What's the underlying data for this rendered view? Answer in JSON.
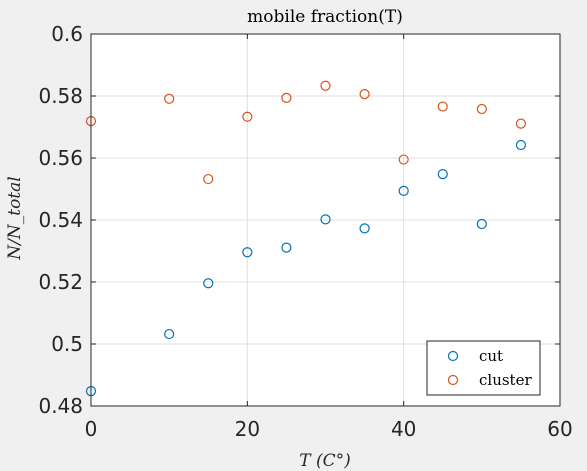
{
  "chart_data": {
    "type": "scatter",
    "title": "mobile fraction(T)",
    "xlabel": "T (C°)",
    "ylabel": "N/N_total",
    "xlim": [
      0,
      60
    ],
    "ylim": [
      0.48,
      0.6
    ],
    "xticks": [
      0,
      20,
      40,
      60
    ],
    "xtick_labels": [
      "0",
      "20",
      "40",
      "60"
    ],
    "yticks": [
      0.48,
      0.5,
      0.52,
      0.54,
      0.56,
      0.58,
      0.6
    ],
    "ytick_labels": [
      "0.48",
      "0.5",
      "0.52",
      "0.54",
      "0.56",
      "0.58",
      "0.6"
    ],
    "grid": true,
    "legend_position": "bottom-right",
    "series": [
      {
        "name": "cut",
        "color": "#0072bd",
        "marker": "open-circle",
        "x": [
          0,
          10,
          15,
          20,
          25,
          30,
          35,
          40,
          45,
          50,
          55
        ],
        "y": [
          0.4848,
          0.5032,
          0.5196,
          0.5296,
          0.5311,
          0.5402,
          0.5373,
          0.5494,
          0.5548,
          0.5387,
          0.5642
        ]
      },
      {
        "name": "cluster",
        "color": "#d95319",
        "marker": "open-circle",
        "x": [
          0,
          10,
          15,
          20,
          25,
          30,
          35,
          40,
          45,
          50,
          55
        ],
        "y": [
          0.5719,
          0.5791,
          0.5532,
          0.5733,
          0.5794,
          0.5833,
          0.5806,
          0.5595,
          0.5766,
          0.5758,
          0.5711
        ]
      }
    ]
  }
}
